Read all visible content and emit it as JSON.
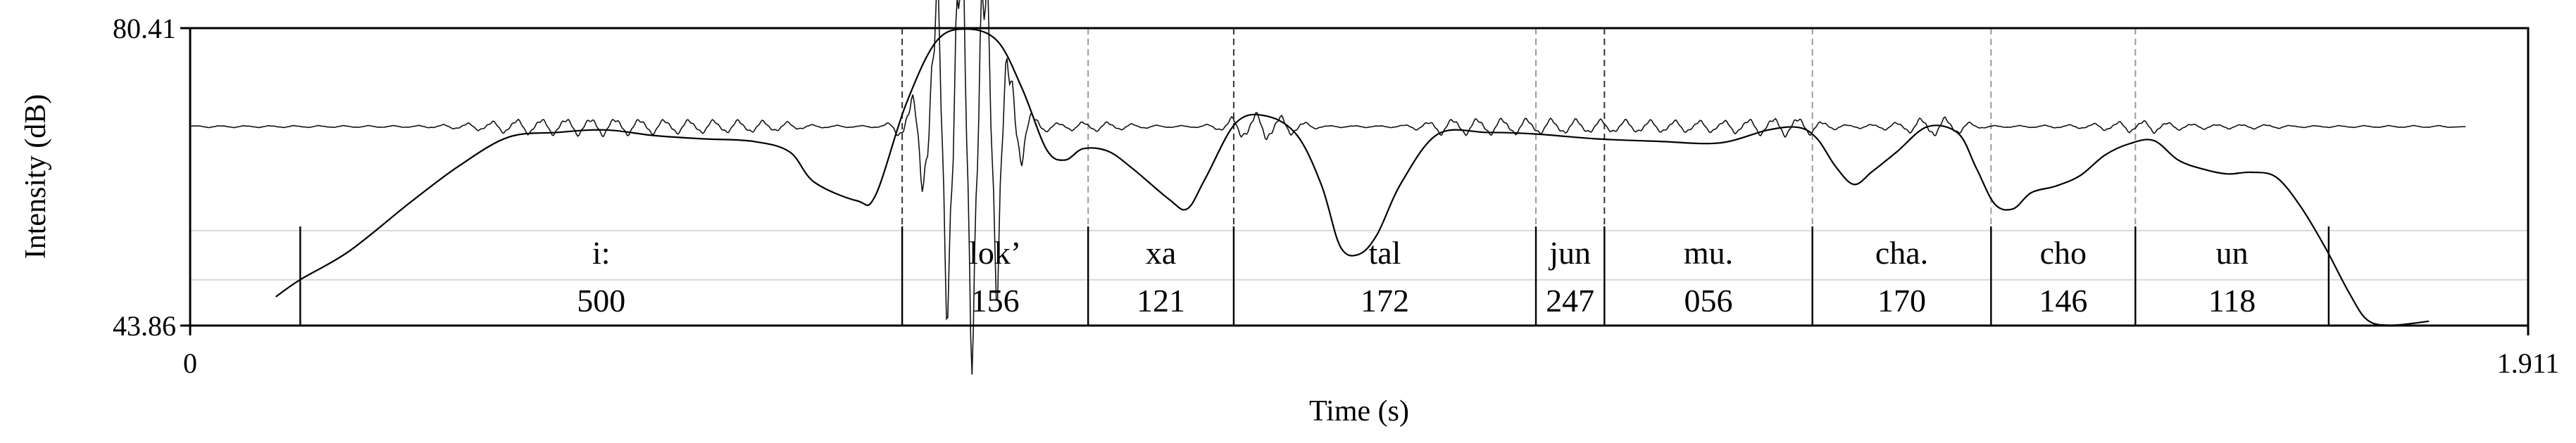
{
  "chart_data": {
    "type": "line",
    "xlabel": "Time (s)",
    "ylabel": "Intensity (dB)",
    "xlim": [
      0,
      1.911
    ],
    "ylim": [
      43.86,
      80.41
    ],
    "x_tick_labels": {
      "min": "0",
      "max": "1.911"
    },
    "y_tick_labels": {
      "min": "43.86",
      "max": "80.41"
    },
    "series": [
      {
        "values": [
          [
            0.07,
            47.4
          ],
          [
            0.09,
            49.5
          ],
          [
            0.13,
            53.0
          ],
          [
            0.18,
            59.0
          ],
          [
            0.22,
            63.5
          ],
          [
            0.26,
            67.0
          ],
          [
            0.3,
            67.6
          ],
          [
            0.34,
            67.9
          ],
          [
            0.38,
            67.2
          ],
          [
            0.42,
            66.8
          ],
          [
            0.46,
            66.5
          ],
          [
            0.49,
            65.2
          ],
          [
            0.51,
            61.5
          ],
          [
            0.545,
            59.2
          ],
          [
            0.56,
            59.8
          ],
          [
            0.585,
            71.0
          ],
          [
            0.61,
            78.8
          ],
          [
            0.635,
            80.3
          ],
          [
            0.66,
            78.8
          ],
          [
            0.68,
            73.0
          ],
          [
            0.7,
            65.5
          ],
          [
            0.715,
            64.2
          ],
          [
            0.73,
            65.6
          ],
          [
            0.75,
            65.3
          ],
          [
            0.77,
            63.2
          ],
          [
            0.8,
            59.4
          ],
          [
            0.815,
            58.2
          ],
          [
            0.83,
            62.0
          ],
          [
            0.855,
            68.8
          ],
          [
            0.88,
            69.6
          ],
          [
            0.905,
            67.2
          ],
          [
            0.925,
            61.0
          ],
          [
            0.94,
            53.6
          ],
          [
            0.955,
            52.6
          ],
          [
            0.97,
            55.0
          ],
          [
            0.99,
            61.4
          ],
          [
            1.02,
            67.4
          ],
          [
            1.06,
            67.6
          ],
          [
            1.1,
            67.4
          ],
          [
            1.15,
            66.8
          ],
          [
            1.2,
            66.5
          ],
          [
            1.25,
            66.3
          ],
          [
            1.29,
            67.9
          ],
          [
            1.315,
            68.2
          ],
          [
            1.33,
            66.8
          ],
          [
            1.345,
            63.4
          ],
          [
            1.36,
            61.2
          ],
          [
            1.375,
            62.8
          ],
          [
            1.395,
            65.2
          ],
          [
            1.42,
            68.3
          ],
          [
            1.445,
            67.5
          ],
          [
            1.46,
            63.2
          ],
          [
            1.475,
            58.8
          ],
          [
            1.49,
            58.2
          ],
          [
            1.505,
            60.2
          ],
          [
            1.525,
            61.0
          ],
          [
            1.545,
            62.3
          ],
          [
            1.565,
            64.8
          ],
          [
            1.585,
            66.2
          ],
          [
            1.605,
            66.6
          ],
          [
            1.625,
            64.2
          ],
          [
            1.645,
            63.1
          ],
          [
            1.665,
            62.5
          ],
          [
            1.685,
            62.7
          ],
          [
            1.705,
            62.1
          ],
          [
            1.725,
            58.5
          ],
          [
            1.745,
            53.5
          ],
          [
            1.765,
            47.8
          ],
          [
            1.78,
            44.5
          ],
          [
            1.8,
            43.9
          ],
          [
            1.83,
            44.4
          ]
        ]
      }
    ],
    "segment_boundaries": [
      0.09,
      0.582,
      0.734,
      0.853,
      1.1,
      1.156,
      1.326,
      1.472,
      1.59,
      1.748
    ],
    "segment_labels": [
      {
        "syllable": "i:",
        "duration": "500"
      },
      {
        "syllable": "lok’",
        "duration": "156"
      },
      {
        "syllable": "xa",
        "duration": "121"
      },
      {
        "syllable": "tal",
        "duration": "172"
      },
      {
        "syllable": "jun",
        "duration": "247"
      },
      {
        "syllable": "mu.",
        "duration": "056"
      },
      {
        "syllable": "cha.",
        "duration": "170"
      },
      {
        "syllable": "cho",
        "duration": "146"
      },
      {
        "syllable": "un",
        "duration": "118"
      }
    ],
    "grid": false,
    "colors": {
      "line": "#000000",
      "waveform": "#111111",
      "guides": "#9a9a9a"
    }
  }
}
